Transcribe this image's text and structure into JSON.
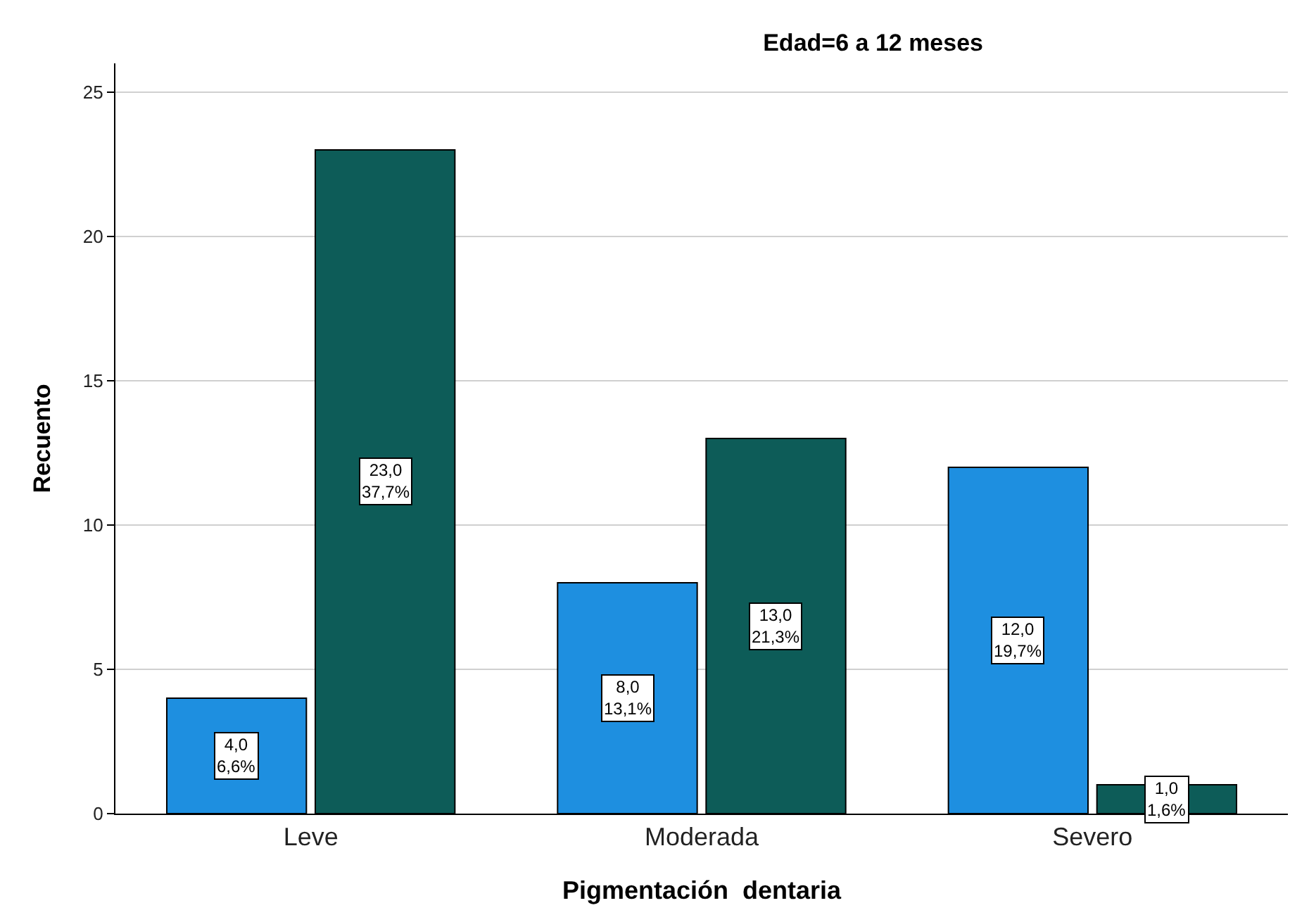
{
  "chart_data": {
    "type": "bar",
    "title": "Edad=6 a 12 meses",
    "xlabel": "Pigmentación  dentaria",
    "ylabel": "Recuento",
    "categories": [
      "Leve",
      "Moderada",
      "Severo"
    ],
    "series": [
      {
        "color": "#1e8fe0",
        "values": [
          4,
          8,
          12
        ],
        "value_labels": [
          "4,0\n6,6%",
          "8,0\n13,1%",
          "12,0\n19,7%"
        ]
      },
      {
        "color": "#0d5c58",
        "values": [
          23,
          13,
          1
        ],
        "value_labels": [
          "23,0\n37,7%",
          "13,0\n21,3%",
          "1,0\n1,6%"
        ]
      }
    ],
    "ylim": [
      0,
      26
    ],
    "yticks": [
      0,
      5,
      10,
      15,
      20,
      25
    ],
    "grid": "y"
  }
}
